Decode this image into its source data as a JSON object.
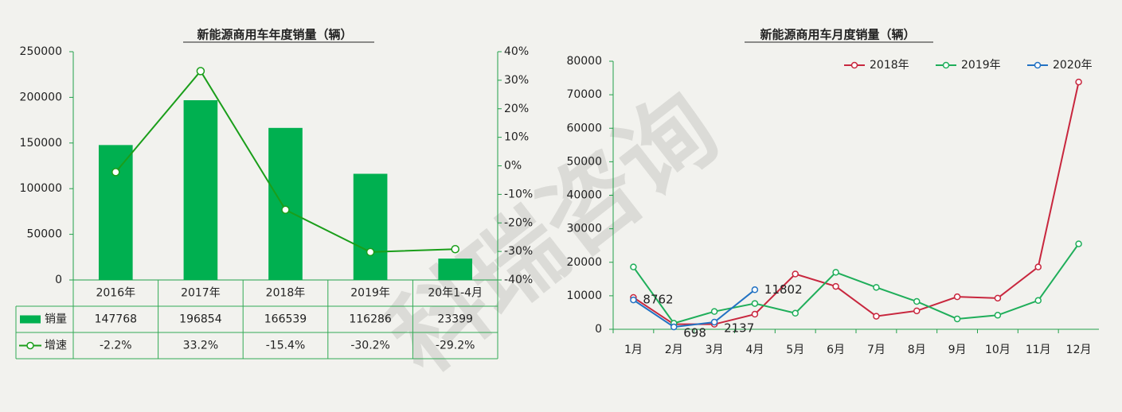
{
  "watermark": "科瑞咨询",
  "chart_data": [
    {
      "type": "bar",
      "title": "新能源商用车年度销量（辆）",
      "categories": [
        "2016年",
        "2017年",
        "2018年",
        "2019年",
        "20年1-4月"
      ],
      "series": [
        {
          "name": "销量",
          "color": "#00b050",
          "values": [
            147768,
            196854,
            166539,
            116286,
            23399
          ]
        },
        {
          "name": "增速",
          "color": "#1a9e1a",
          "type": "line",
          "axis": "y2",
          "values": [
            -2.2,
            33.2,
            -15.4,
            -30.2,
            -29.2
          ],
          "value_labels": [
            "-2.2%",
            "33.2%",
            "-15.4%",
            "-30.2%",
            "-29.2%"
          ]
        }
      ],
      "ylim": [
        0,
        250000
      ],
      "yticks": [
        0,
        50000,
        100000,
        150000,
        200000,
        250000
      ],
      "y2lim": [
        -40,
        40
      ],
      "y2ticks": [
        {
          "value": -40,
          "label": "-40%"
        },
        {
          "value": -30,
          "label": "-30%"
        },
        {
          "value": -20,
          "label": "-20%"
        },
        {
          "value": -10,
          "label": "-10%"
        },
        {
          "value": 0,
          "label": "0%"
        },
        {
          "value": 10,
          "label": "10%"
        },
        {
          "value": 20,
          "label": "20%"
        },
        {
          "value": 30,
          "label": "30%"
        },
        {
          "value": 40,
          "label": "40%"
        }
      ],
      "grid": false,
      "data_table": true
    },
    {
      "type": "line",
      "title": "新能源商用车月度销量（辆）",
      "categories": [
        "1月",
        "2月",
        "3月",
        "4月",
        "5月",
        "6月",
        "7月",
        "8月",
        "9月",
        "10月",
        "11月",
        "12月"
      ],
      "series": [
        {
          "name": "2018年",
          "color": "#c8273e",
          "values": [
            9500,
            1500,
            1500,
            4500,
            16500,
            12800,
            3900,
            5500,
            9700,
            9300,
            18600,
            73800
          ]
        },
        {
          "name": "2019年",
          "color": "#1fae5a",
          "values": [
            18600,
            1800,
            5300,
            7700,
            4800,
            17000,
            12500,
            8300,
            3100,
            4200,
            8600,
            25500
          ]
        },
        {
          "name": "2020年",
          "color": "#2272c3",
          "values": [
            8762,
            698,
            2137,
            11802,
            null,
            null,
            null,
            null,
            null,
            null,
            null,
            null
          ],
          "data_labels": true
        }
      ],
      "ylim": [
        0,
        80000
      ],
      "yticks": [
        0,
        10000,
        20000,
        30000,
        40000,
        50000,
        60000,
        70000,
        80000
      ],
      "grid": false,
      "legend": "top-right"
    }
  ]
}
